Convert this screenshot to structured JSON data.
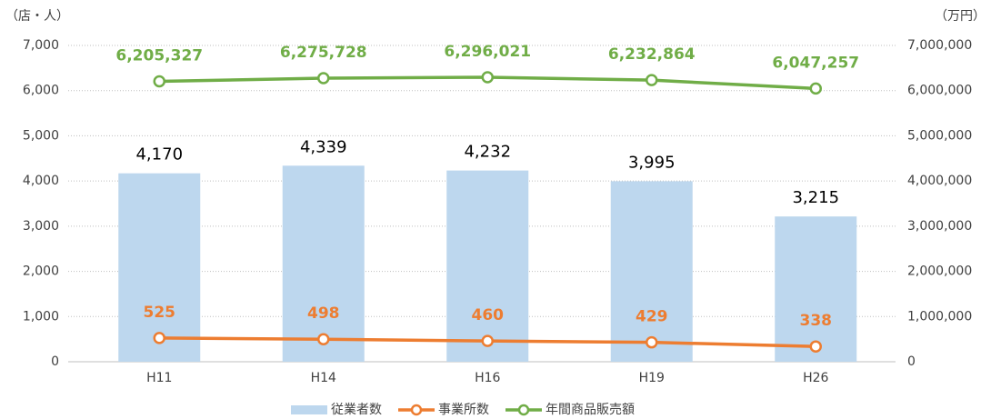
{
  "chart_data": {
    "type": "bar",
    "y_label": "（店・人）",
    "y2_label": "（万円）",
    "categories": [
      "H11",
      "H14",
      "H16",
      "H19",
      "H26"
    ],
    "series": [
      {
        "name": "従業者数",
        "type": "bar",
        "color": "#bdd7ee",
        "values": [
          4170,
          4339,
          4232,
          3995,
          3215
        ],
        "value_labels": [
          "4,170",
          "4,339",
          "4,232",
          "3,995",
          "3,215"
        ]
      },
      {
        "name": "事業所数",
        "type": "line",
        "color": "#ed7d31",
        "values": [
          525,
          498,
          460,
          429,
          338
        ]
      },
      {
        "name": "年間商品販売額",
        "type": "line",
        "axis": "y2",
        "color": "#70ad47",
        "values": [
          6205327,
          6275728,
          6296021,
          6232864,
          6047257
        ],
        "value_labels": [
          "6,205,327",
          "6,275,728",
          "6,296,021",
          "6,232,864",
          "6,047,257"
        ]
      }
    ],
    "ylim": [
      0,
      7000
    ],
    "yticks": [
      0,
      {
        "value": 1000,
        "label": "1,000"
      },
      {
        "value": 2000,
        "label": "2,000"
      },
      {
        "value": 3000,
        "label": "3,000"
      },
      {
        "value": 4000,
        "label": "4,000"
      },
      {
        "value": 5000,
        "label": "5,000"
      },
      {
        "value": 6000,
        "label": "6,000"
      },
      {
        "value": 7000,
        "label": "7,000"
      }
    ],
    "y2lim": [
      0,
      7000000
    ],
    "y2ticks": [
      0,
      {
        "value": 1000000,
        "label": "1,000,000"
      },
      {
        "value": 2000000,
        "label": "2,000,000"
      },
      {
        "value": 3000000,
        "label": "3,000,000"
      },
      {
        "value": 4000000,
        "label": "4,000,000"
      },
      {
        "value": 5000000,
        "label": "5,000,000"
      },
      {
        "value": 6000000,
        "label": "6,000,000"
      },
      {
        "value": 7000000,
        "label": "7,000,000"
      }
    ],
    "grid": true,
    "legend": "bottom"
  }
}
